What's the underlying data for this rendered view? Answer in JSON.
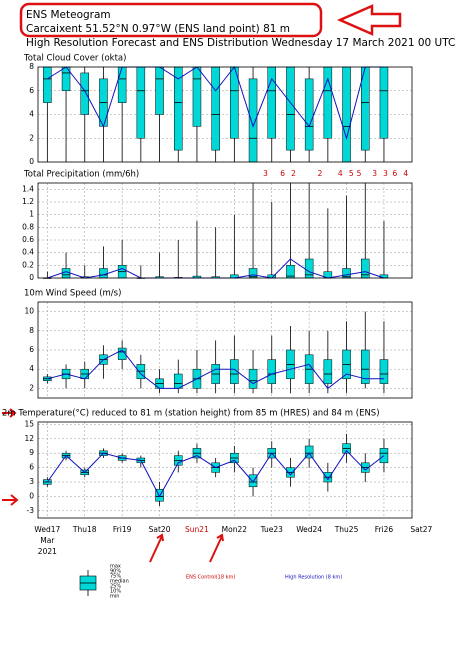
{
  "header": {
    "title": "ENS Meteogram",
    "location": "Carcaixent 51.52°N 0.97°W (ENS land point) 81 m",
    "subtitle": "High Resolution Forecast and ENS Distribution Wednesday 17 March 2021 00 UTC"
  },
  "time_axis": {
    "xlim": [
      -6,
      234
    ],
    "xticks": [
      {
        "value": 0,
        "label": "Wed17"
      },
      {
        "value": 24,
        "label": "Thu18"
      },
      {
        "value": 48,
        "label": "Fri19"
      },
      {
        "value": 72,
        "label": "Sat20"
      },
      {
        "value": 96,
        "label": "Sun21",
        "color": "#cc0000"
      },
      {
        "value": 120,
        "label": "Mon22"
      },
      {
        "value": 144,
        "label": "Tue23"
      },
      {
        "value": 168,
        "label": "Wed24"
      },
      {
        "value": 192,
        "label": "Thu25"
      },
      {
        "value": 216,
        "label": "Fri26"
      },
      {
        "value": 240,
        "label": "Sat27"
      }
    ],
    "sublabels": [
      "Mar",
      "2021"
    ]
  },
  "chart_data": [
    {
      "type": "boxplot",
      "title": "Total Cloud Cover (okta)",
      "box_color": "#00d8d8",
      "x": [
        0,
        12,
        24,
        36,
        48,
        60,
        72,
        84,
        96,
        108,
        120,
        132,
        144,
        156,
        168,
        180,
        192,
        204,
        216
      ],
      "box": {
        "low": [
          0,
          0,
          0,
          0,
          0,
          0,
          0,
          0,
          0,
          0,
          0,
          0,
          0,
          0,
          0,
          0,
          0,
          0,
          0
        ],
        "q1": [
          5,
          6,
          4,
          3,
          5,
          2,
          4,
          1,
          3,
          1,
          2,
          0,
          2,
          1,
          1,
          2,
          0,
          1,
          2
        ],
        "median": [
          7,
          7.5,
          6,
          5,
          7,
          6,
          7,
          5,
          7,
          4,
          6,
          2,
          6,
          4,
          3,
          6,
          3,
          5,
          6
        ],
        "q3": [
          8,
          8,
          7.5,
          7,
          8,
          8,
          8,
          8,
          8,
          8,
          8,
          7,
          8,
          8,
          7,
          8,
          8,
          8,
          8
        ],
        "high": [
          8,
          8,
          8,
          8,
          8,
          8,
          8,
          8,
          8,
          8,
          8,
          8,
          8,
          8,
          8,
          8,
          8,
          8,
          8
        ]
      },
      "series": [
        {
          "color": "#1010c0",
          "values": [
            7,
            8,
            6,
            3,
            8,
            8,
            8,
            7,
            8,
            6,
            8,
            3,
            7,
            5,
            3,
            7,
            2,
            8,
            8
          ]
        }
      ],
      "ylim": [
        0,
        8
      ],
      "yticks": [
        0,
        2,
        4,
        6,
        8
      ],
      "grid": true
    },
    {
      "type": "boxplot",
      "title": "Total Precipitation (mm/6h)",
      "box_color": "#00d8d8",
      "x": [
        0,
        12,
        24,
        36,
        48,
        60,
        72,
        84,
        96,
        108,
        120,
        132,
        144,
        156,
        168,
        180,
        192,
        204,
        216
      ],
      "box": {
        "low": [
          0,
          0,
          0,
          0,
          0,
          0,
          0,
          0,
          0,
          0,
          0,
          0,
          0,
          0,
          0,
          0,
          0,
          0,
          0
        ],
        "q1": [
          0,
          0,
          0,
          0,
          0,
          0,
          0,
          0,
          0,
          0,
          0,
          0,
          0,
          0,
          0,
          0,
          0,
          0,
          0
        ],
        "median": [
          0,
          0.05,
          0,
          0.05,
          0.1,
          0,
          0,
          0,
          0,
          0,
          0,
          0.02,
          0,
          0.03,
          0.05,
          0,
          0.02,
          0.05,
          0
        ],
        "q3": [
          0,
          0.15,
          0.02,
          0.15,
          0.2,
          0,
          0.02,
          0.01,
          0.03,
          0.02,
          0.05,
          0.15,
          0.05,
          0.2,
          0.3,
          0.1,
          0.15,
          0.3,
          0.05
        ],
        "high": [
          0.1,
          0.4,
          0.2,
          0.5,
          0.6,
          0.2,
          0.4,
          0.6,
          0.9,
          0.8,
          1.0,
          1.5,
          1.2,
          1.5,
          1.5,
          1.1,
          1.3,
          1.5,
          0.9
        ]
      },
      "series": [
        {
          "color": "#1010c0",
          "values": [
            0,
            0.1,
            0,
            0.05,
            0.15,
            0,
            0,
            0,
            0,
            0,
            0,
            0.05,
            0,
            0.3,
            0.1,
            0,
            0.05,
            0.1,
            0
          ]
        }
      ],
      "annotations": [
        {
          "x": 140,
          "label": "3"
        },
        {
          "x": 151,
          "label": "6"
        },
        {
          "x": 158,
          "label": "2"
        },
        {
          "x": 175,
          "label": "2"
        },
        {
          "x": 188,
          "label": "4"
        },
        {
          "x": 195,
          "label": "5"
        },
        {
          "x": 200,
          "label": "5"
        },
        {
          "x": 210,
          "label": "3"
        },
        {
          "x": 217,
          "label": "3"
        },
        {
          "x": 223,
          "label": "6"
        },
        {
          "x": 230,
          "label": "4"
        }
      ],
      "annotation_color": "#cc0000",
      "ylim": [
        0,
        1.5
      ],
      "yticks": [
        0,
        0.2,
        0.4,
        0.6,
        0.8,
        1,
        1.2,
        1.4
      ],
      "grid": true
    },
    {
      "type": "boxplot",
      "title": "10m Wind Speed (m/s)",
      "box_color": "#00d8d8",
      "x": [
        0,
        12,
        24,
        36,
        48,
        60,
        72,
        84,
        96,
        108,
        120,
        132,
        144,
        156,
        168,
        180,
        192,
        204,
        216
      ],
      "box": {
        "low": [
          2.5,
          2,
          2,
          3,
          4,
          2,
          1.5,
          1.5,
          1.5,
          1.5,
          1.5,
          1.5,
          1.5,
          1.5,
          1.5,
          1.5,
          1.5,
          2,
          1.5
        ],
        "q1": [
          2.8,
          3,
          3,
          4.5,
          5,
          3,
          2,
          2,
          2,
          2.5,
          2.5,
          2,
          2.5,
          3,
          2.5,
          2.5,
          3,
          2.5,
          2.5
        ],
        "median": [
          3,
          3.5,
          3.5,
          5,
          5.8,
          3.8,
          2.5,
          2.5,
          3,
          3.5,
          3.5,
          2.8,
          3.5,
          4.5,
          4,
          3.5,
          4.5,
          4,
          3.5
        ],
        "q3": [
          3.2,
          4,
          4,
          5.5,
          6.2,
          4.5,
          3,
          3.5,
          4,
          4.5,
          5,
          4,
          5,
          6,
          5.5,
          5,
          6,
          6,
          5
        ],
        "high": [
          3.5,
          4.5,
          4.8,
          6.5,
          7,
          5.5,
          4,
          5,
          6,
          7,
          7.5,
          6,
          7.5,
          8.5,
          8,
          8,
          9,
          10,
          9
        ]
      },
      "series": [
        {
          "color": "#1010c0",
          "values": [
            3,
            3.5,
            3,
            5,
            6,
            3.5,
            2,
            2,
            3,
            4,
            4,
            2.5,
            3.5,
            4,
            4.5,
            2,
            3.5,
            3,
            3
          ]
        }
      ],
      "ylim": [
        1,
        11
      ],
      "yticks": [
        2,
        4,
        6,
        8,
        10
      ],
      "grid": true
    },
    {
      "type": "boxplot",
      "title": "2m Temperature(°C) reduced to 81 m (station height) from 85 m (HRES) and 84 m (ENS)",
      "box_color": "#00d8d8",
      "x": [
        0,
        12,
        24,
        36,
        48,
        60,
        72,
        84,
        96,
        108,
        120,
        132,
        144,
        156,
        168,
        180,
        192,
        204,
        216
      ],
      "box": {
        "low": [
          2,
          7.5,
          4,
          8,
          7,
          6,
          -2,
          5,
          7,
          4,
          5,
          0,
          6,
          2,
          6,
          1,
          7,
          3,
          5
        ],
        "q1": [
          2.5,
          8,
          4.5,
          8.5,
          7.5,
          7,
          -1,
          6.5,
          8,
          5,
          7,
          2,
          8,
          4,
          8,
          3,
          9,
          5,
          7
        ],
        "median": [
          3,
          8.5,
          5,
          9,
          8,
          7.5,
          0,
          7.5,
          9,
          6,
          8,
          3,
          9,
          5,
          9,
          4,
          10,
          6,
          9
        ],
        "q3": [
          3.5,
          9,
          5.5,
          9.5,
          8.5,
          8,
          1.5,
          8.5,
          10,
          7,
          9,
          4.5,
          10,
          6,
          10.5,
          5,
          11,
          7,
          10
        ],
        "high": [
          4,
          9.5,
          6,
          10,
          9,
          8.5,
          3,
          9.5,
          11,
          8,
          10.5,
          6,
          11.5,
          8,
          12,
          7,
          13,
          9,
          12
        ]
      },
      "series": [
        {
          "color": "#1010c0",
          "values": [
            3,
            8.5,
            5,
            9,
            8,
            7.5,
            0,
            7,
            8.5,
            6,
            7.5,
            3,
            9,
            4.5,
            9,
            3.5,
            9.5,
            5.5,
            8.5
          ]
        }
      ],
      "ylim": [
        -4.5,
        15.5
      ],
      "yticks": [
        -3,
        0,
        3,
        6,
        9,
        12,
        15
      ],
      "grid": true
    }
  ],
  "legend": {
    "box_labels": [
      "max",
      "90%",
      "75%",
      "median",
      "25%",
      "10%",
      "min"
    ],
    "control": "ENS Control(18 km)",
    "control_color": "#cc0000",
    "hres": "High Resolution (8 km)",
    "hres_color": "#1010c0"
  }
}
